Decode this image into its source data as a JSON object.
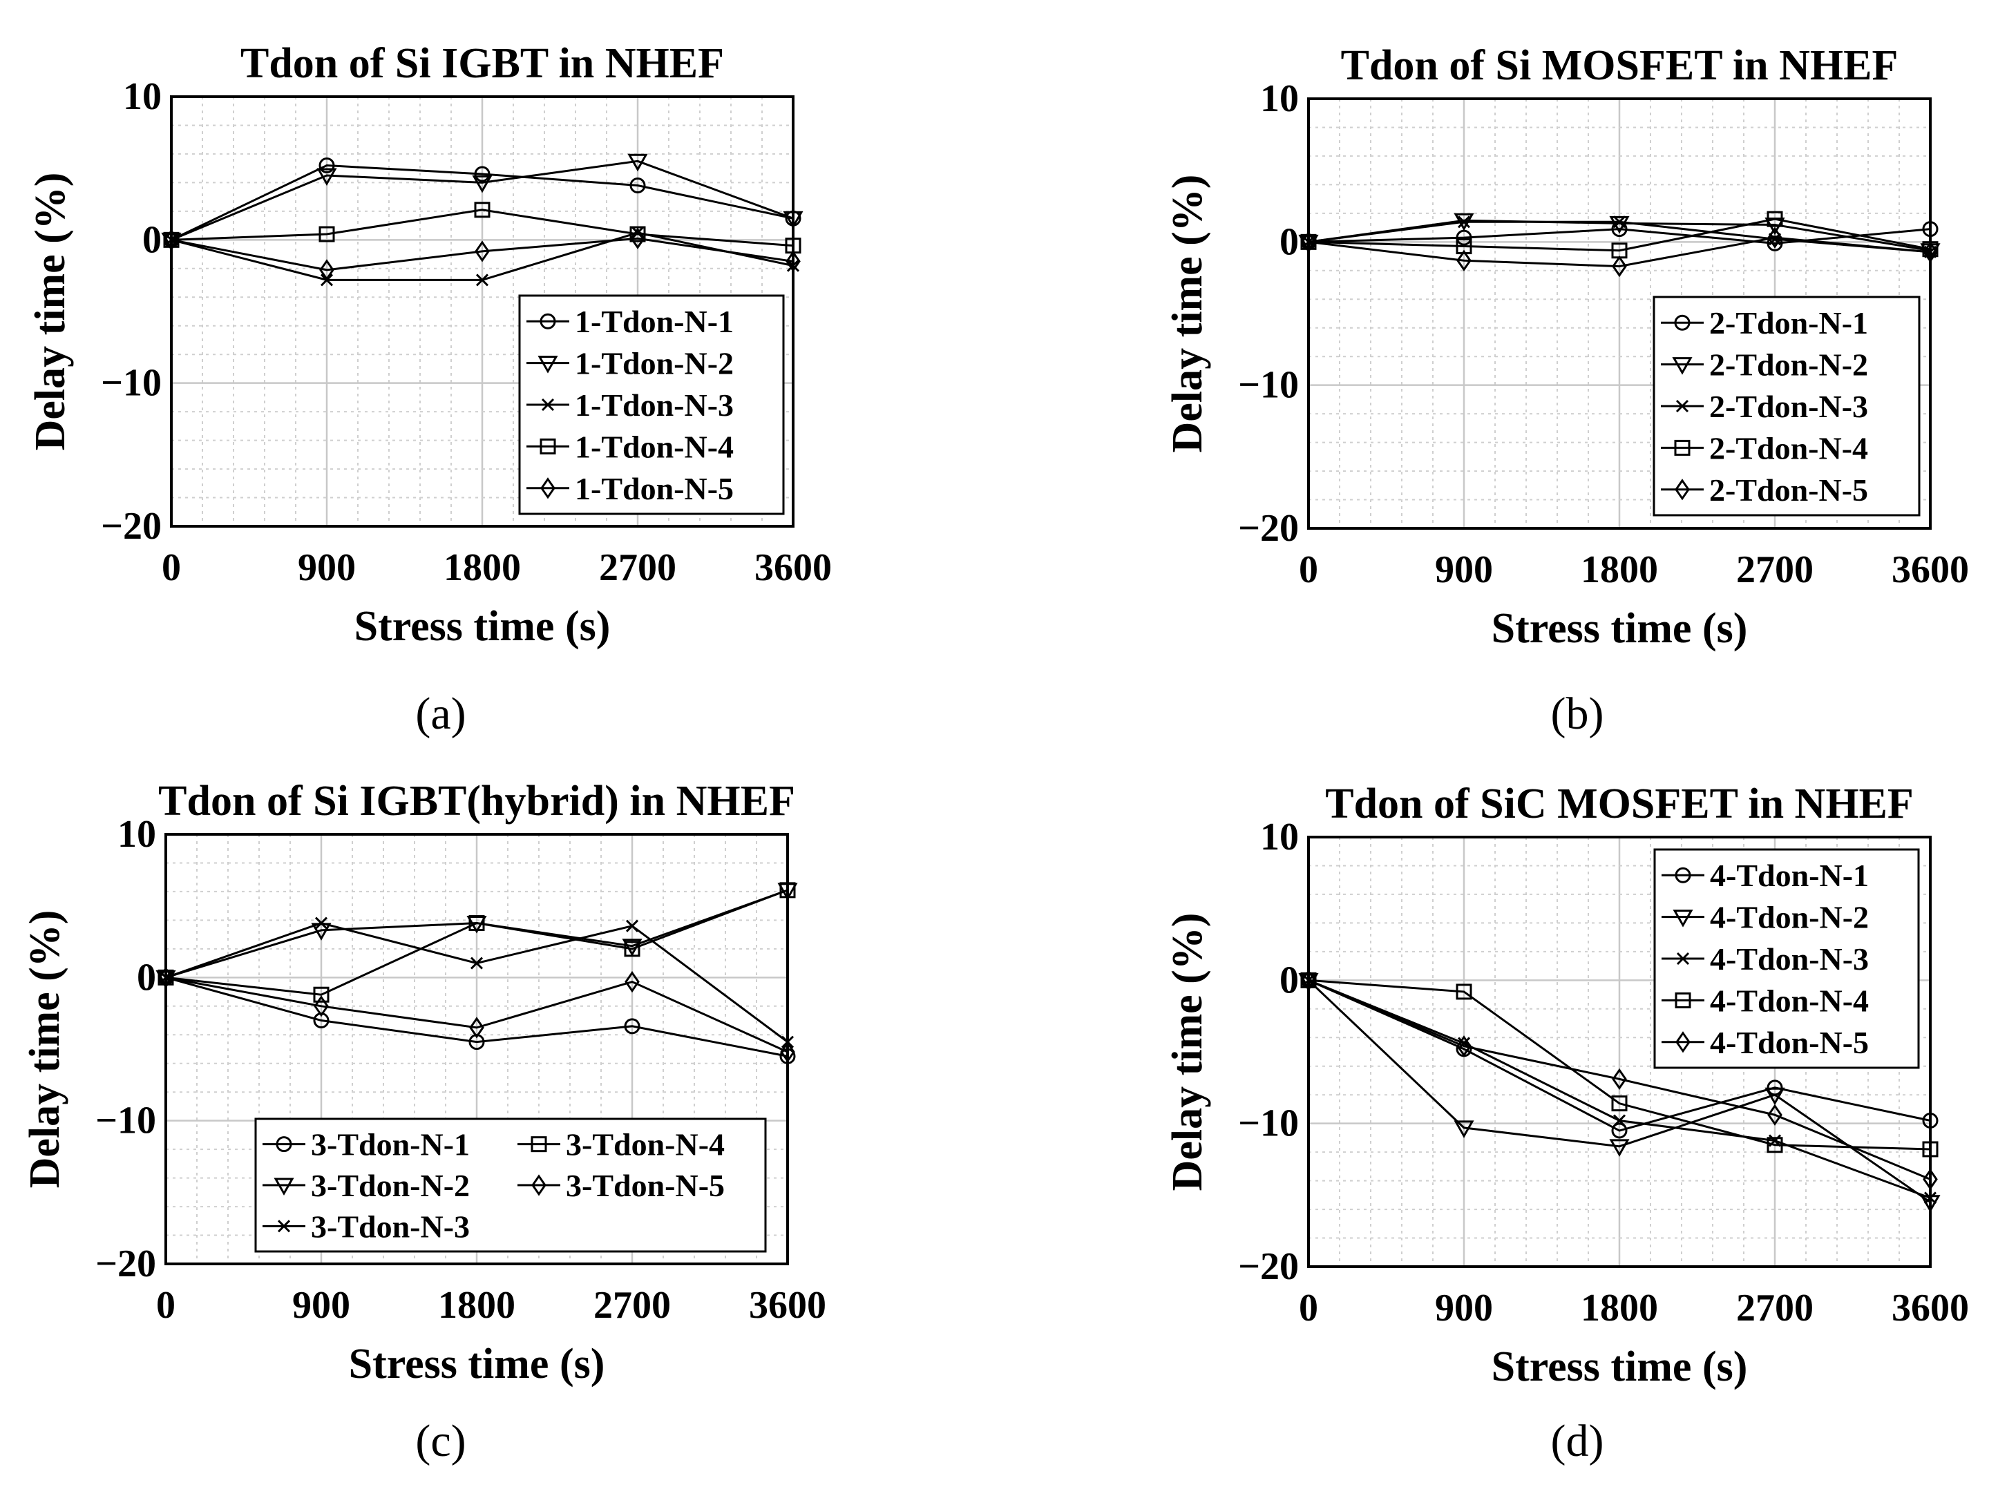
{
  "chart_data": [
    {
      "type": "line",
      "title": "Tdon of Si IGBT in NHEF",
      "xlabel": "Stress time (s)",
      "ylabel": "Delay time (%)",
      "caption": "(a)",
      "x": [
        0,
        900,
        1800,
        2700,
        3600
      ],
      "xticks": [
        "0",
        "900",
        "1800",
        "2700",
        "3600"
      ],
      "yticks": [
        "10",
        "0",
        "−10",
        "−20"
      ],
      "xlim": [
        0,
        3600
      ],
      "ylim": [
        -20,
        10
      ],
      "grid": true,
      "legend_position": "bottom-right",
      "legend_columns": 1,
      "series": [
        {
          "name": "1-Tdon-N-1",
          "marker": "circle",
          "values": [
            0,
            5.2,
            4.6,
            3.8,
            1.5
          ]
        },
        {
          "name": "1-Tdon-N-2",
          "marker": "triangle-down",
          "values": [
            0,
            4.5,
            4.0,
            5.5,
            1.5
          ]
        },
        {
          "name": "1-Tdon-N-3",
          "marker": "x",
          "values": [
            0,
            -2.8,
            -2.8,
            0.5,
            -1.8
          ]
        },
        {
          "name": "1-Tdon-N-4",
          "marker": "square",
          "values": [
            0,
            0.4,
            2.1,
            0.4,
            -0.4
          ]
        },
        {
          "name": "1-Tdon-N-5",
          "marker": "diamond",
          "values": [
            0,
            -2.1,
            -0.8,
            0.1,
            -1.5
          ]
        }
      ]
    },
    {
      "type": "line",
      "title": "Tdon of Si MOSFET in NHEF",
      "xlabel": "Stress time (s)",
      "ylabel": "Delay time (%)",
      "caption": "(b)",
      "x": [
        0,
        900,
        1800,
        2700,
        3600
      ],
      "xticks": [
        "0",
        "900",
        "1800",
        "2700",
        "3600"
      ],
      "yticks": [
        "10",
        "0",
        "−10",
        "−20"
      ],
      "xlim": [
        0,
        3600
      ],
      "ylim": [
        -20,
        10
      ],
      "grid": true,
      "legend_position": "bottom-right",
      "legend_columns": 1,
      "series": [
        {
          "name": "2-Tdon-N-1",
          "marker": "circle",
          "values": [
            0,
            0.3,
            0.9,
            -0.1,
            0.9
          ]
        },
        {
          "name": "2-Tdon-N-2",
          "marker": "triangle-down",
          "values": [
            0,
            1.5,
            1.3,
            1.2,
            -0.6
          ]
        },
        {
          "name": "2-Tdon-N-3",
          "marker": "x",
          "values": [
            0,
            1.4,
            1.4,
            0.2,
            -0.7
          ]
        },
        {
          "name": "2-Tdon-N-4",
          "marker": "square",
          "values": [
            0,
            -0.3,
            -0.6,
            1.6,
            -0.5
          ]
        },
        {
          "name": "2-Tdon-N-5",
          "marker": "diamond",
          "values": [
            0,
            -1.3,
            -1.7,
            0.3,
            -0.7
          ]
        }
      ]
    },
    {
      "type": "line",
      "title": "Tdon of Si IGBT(hybrid) in NHEF",
      "xlabel": "Stress time (s)",
      "ylabel": "Delay time (%)",
      "caption": "(c)",
      "x": [
        0,
        900,
        1800,
        2700,
        3600
      ],
      "xticks": [
        "0",
        "900",
        "1800",
        "2700",
        "3600"
      ],
      "yticks": [
        "10",
        "0",
        "−10",
        "−20"
      ],
      "xlim": [
        0,
        3600
      ],
      "ylim": [
        -20,
        10
      ],
      "grid": true,
      "legend_position": "bottom",
      "legend_columns": 2,
      "series": [
        {
          "name": "3-Tdon-N-1",
          "marker": "circle",
          "values": [
            0,
            -3.0,
            -4.5,
            -3.4,
            -5.5
          ]
        },
        {
          "name": "3-Tdon-N-2",
          "marker": "triangle-down",
          "values": [
            0,
            3.3,
            3.8,
            2.2,
            6.1
          ]
        },
        {
          "name": "3-Tdon-N-3",
          "marker": "x",
          "values": [
            0,
            3.8,
            1.0,
            3.6,
            -4.5
          ]
        },
        {
          "name": "3-Tdon-N-4",
          "marker": "square",
          "values": [
            0,
            -1.2,
            3.8,
            2.0,
            6.1
          ]
        },
        {
          "name": "3-Tdon-N-5",
          "marker": "diamond",
          "values": [
            0,
            -2.0,
            -3.5,
            -0.3,
            -5.2
          ]
        }
      ]
    },
    {
      "type": "line",
      "title": "Tdon of SiC MOSFET in NHEF",
      "xlabel": "Stress time (s)",
      "ylabel": "Delay time (%)",
      "caption": "(d)",
      "x": [
        0,
        900,
        1800,
        2700,
        3600
      ],
      "xticks": [
        "0",
        "900",
        "1800",
        "2700",
        "3600"
      ],
      "yticks": [
        "10",
        "0",
        "−10",
        "−20"
      ],
      "xlim": [
        0,
        3600
      ],
      "ylim": [
        -20,
        10
      ],
      "grid": true,
      "legend_position": "top-right",
      "legend_columns": 1,
      "series": [
        {
          "name": "4-Tdon-N-1",
          "marker": "circle",
          "values": [
            0,
            -4.8,
            -10.5,
            -7.5,
            -9.8
          ]
        },
        {
          "name": "4-Tdon-N-2",
          "marker": "triangle-down",
          "values": [
            0,
            -10.3,
            -11.6,
            -8.0,
            -15.5
          ]
        },
        {
          "name": "4-Tdon-N-3",
          "marker": "x",
          "values": [
            0,
            -4.4,
            -9.8,
            -11.2,
            -15.2
          ]
        },
        {
          "name": "4-Tdon-N-4",
          "marker": "square",
          "values": [
            0,
            -0.8,
            -8.6,
            -11.5,
            -11.8
          ]
        },
        {
          "name": "4-Tdon-N-5",
          "marker": "diamond",
          "values": [
            0,
            -4.6,
            -6.9,
            -9.4,
            -13.9
          ]
        }
      ]
    }
  ]
}
